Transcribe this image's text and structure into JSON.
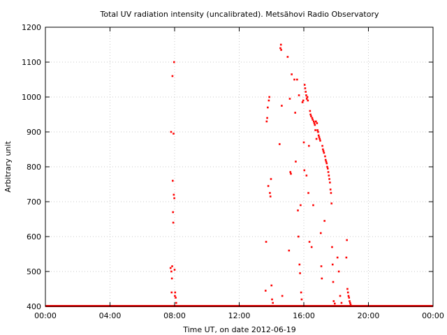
{
  "chart_data": {
    "type": "scatter",
    "title": "Total UV radiation intensity (uncalibrated). Metsähovi Radio Observatory",
    "xlabel": "Time UT, on date 2012-06-19",
    "ylabel": "Arbitrary unit",
    "xlim": [
      "00:00",
      "24:00"
    ],
    "ylim": [
      400,
      1200
    ],
    "x_ticks": [
      "00:00",
      "04:00",
      "08:00",
      "12:00",
      "16:00",
      "20:00",
      "00:00"
    ],
    "y_ticks": [
      400,
      500,
      600,
      700,
      800,
      900,
      1000,
      1100,
      1200
    ],
    "grid": true,
    "legend": "none",
    "marker_color": "#ff0000",
    "baseline": {
      "value": 401,
      "from": "00:00",
      "to": "24:00",
      "note_visible": false
    },
    "points": [
      {
        "x": "07:45",
        "y": 510
      },
      {
        "x": "07:47",
        "y": 900
      },
      {
        "x": "07:48",
        "y": 500
      },
      {
        "x": "07:49",
        "y": 440
      },
      {
        "x": "07:50",
        "y": 480
      },
      {
        "x": "07:51",
        "y": 515
      },
      {
        "x": "07:52",
        "y": 1060
      },
      {
        "x": "07:53",
        "y": 760
      },
      {
        "x": "07:54",
        "y": 670
      },
      {
        "x": "07:55",
        "y": 640
      },
      {
        "x": "07:56",
        "y": 895
      },
      {
        "x": "07:57",
        "y": 720
      },
      {
        "x": "07:58",
        "y": 1100
      },
      {
        "x": "07:59",
        "y": 710
      },
      {
        "x": "08:00",
        "y": 505
      },
      {
        "x": "08:01",
        "y": 430
      },
      {
        "x": "08:02",
        "y": 440
      },
      {
        "x": "08:04",
        "y": 425
      },
      {
        "x": "08:06",
        "y": 410
      },
      {
        "x": "13:38",
        "y": 445
      },
      {
        "x": "13:40",
        "y": 585
      },
      {
        "x": "13:42",
        "y": 930
      },
      {
        "x": "13:44",
        "y": 940
      },
      {
        "x": "13:46",
        "y": 970
      },
      {
        "x": "13:48",
        "y": 745
      },
      {
        "x": "13:50",
        "y": 990
      },
      {
        "x": "13:52",
        "y": 1000
      },
      {
        "x": "13:54",
        "y": 725
      },
      {
        "x": "13:56",
        "y": 715
      },
      {
        "x": "13:58",
        "y": 765
      },
      {
        "x": "14:00",
        "y": 460
      },
      {
        "x": "14:02",
        "y": 420
      },
      {
        "x": "14:05",
        "y": 410
      },
      {
        "x": "14:30",
        "y": 865
      },
      {
        "x": "14:33",
        "y": 1140
      },
      {
        "x": "14:35",
        "y": 1150
      },
      {
        "x": "14:36",
        "y": 1135
      },
      {
        "x": "14:38",
        "y": 975
      },
      {
        "x": "14:40",
        "y": 430
      },
      {
        "x": "15:00",
        "y": 1115
      },
      {
        "x": "15:05",
        "y": 560
      },
      {
        "x": "15:08",
        "y": 995
      },
      {
        "x": "15:10",
        "y": 785
      },
      {
        "x": "15:12",
        "y": 780
      },
      {
        "x": "15:15",
        "y": 1065
      },
      {
        "x": "15:25",
        "y": 1050
      },
      {
        "x": "15:28",
        "y": 955
      },
      {
        "x": "15:30",
        "y": 815
      },
      {
        "x": "15:35",
        "y": 1050
      },
      {
        "x": "15:38",
        "y": 675
      },
      {
        "x": "15:40",
        "y": 600
      },
      {
        "x": "15:42",
        "y": 1005
      },
      {
        "x": "15:44",
        "y": 520
      },
      {
        "x": "15:46",
        "y": 495
      },
      {
        "x": "15:48",
        "y": 690
      },
      {
        "x": "15:50",
        "y": 440
      },
      {
        "x": "15:52",
        "y": 420
      },
      {
        "x": "15:55",
        "y": 985
      },
      {
        "x": "15:58",
        "y": 990
      },
      {
        "x": "16:00",
        "y": 870
      },
      {
        "x": "16:02",
        "y": 790
      },
      {
        "x": "16:03",
        "y": 1035
      },
      {
        "x": "16:05",
        "y": 1025
      },
      {
        "x": "16:07",
        "y": 1015
      },
      {
        "x": "16:09",
        "y": 1005
      },
      {
        "x": "16:10",
        "y": 775
      },
      {
        "x": "16:11",
        "y": 995
      },
      {
        "x": "16:13",
        "y": 1000
      },
      {
        "x": "16:15",
        "y": 990
      },
      {
        "x": "16:17",
        "y": 725
      },
      {
        "x": "16:19",
        "y": 860
      },
      {
        "x": "16:21",
        "y": 585
      },
      {
        "x": "16:23",
        "y": 960
      },
      {
        "x": "16:25",
        "y": 950
      },
      {
        "x": "16:27",
        "y": 945
      },
      {
        "x": "16:29",
        "y": 570
      },
      {
        "x": "16:31",
        "y": 940
      },
      {
        "x": "16:33",
        "y": 935
      },
      {
        "x": "16:35",
        "y": 690
      },
      {
        "x": "16:37",
        "y": 930
      },
      {
        "x": "16:39",
        "y": 925
      },
      {
        "x": "16:41",
        "y": 920
      },
      {
        "x": "16:43",
        "y": 905
      },
      {
        "x": "16:45",
        "y": 930
      },
      {
        "x": "16:47",
        "y": 880
      },
      {
        "x": "16:49",
        "y": 925
      },
      {
        "x": "16:51",
        "y": 905
      },
      {
        "x": "16:53",
        "y": 900
      },
      {
        "x": "16:55",
        "y": 890
      },
      {
        "x": "16:57",
        "y": 885
      },
      {
        "x": "16:59",
        "y": 880
      },
      {
        "x": "17:01",
        "y": 875
      },
      {
        "x": "17:03",
        "y": 610
      },
      {
        "x": "17:05",
        "y": 515
      },
      {
        "x": "17:07",
        "y": 480
      },
      {
        "x": "17:09",
        "y": 860
      },
      {
        "x": "17:11",
        "y": 850
      },
      {
        "x": "17:13",
        "y": 845
      },
      {
        "x": "17:15",
        "y": 840
      },
      {
        "x": "17:17",
        "y": 645
      },
      {
        "x": "17:19",
        "y": 830
      },
      {
        "x": "17:21",
        "y": 820
      },
      {
        "x": "17:23",
        "y": 815
      },
      {
        "x": "17:25",
        "y": 810
      },
      {
        "x": "17:27",
        "y": 800
      },
      {
        "x": "17:29",
        "y": 795
      },
      {
        "x": "17:31",
        "y": 785
      },
      {
        "x": "17:33",
        "y": 775
      },
      {
        "x": "17:35",
        "y": 765
      },
      {
        "x": "17:37",
        "y": 755
      },
      {
        "x": "17:39",
        "y": 735
      },
      {
        "x": "17:41",
        "y": 725
      },
      {
        "x": "17:43",
        "y": 695
      },
      {
        "x": "17:45",
        "y": 570
      },
      {
        "x": "17:47",
        "y": 520
      },
      {
        "x": "17:49",
        "y": 470
      },
      {
        "x": "17:51",
        "y": 415
      },
      {
        "x": "17:55",
        "y": 408
      },
      {
        "x": "18:05",
        "y": 540
      },
      {
        "x": "18:10",
        "y": 500
      },
      {
        "x": "18:15",
        "y": 430
      },
      {
        "x": "18:20",
        "y": 410
      },
      {
        "x": "18:38",
        "y": 540
      },
      {
        "x": "18:40",
        "y": 590
      },
      {
        "x": "18:42",
        "y": 450
      },
      {
        "x": "18:44",
        "y": 440
      },
      {
        "x": "18:46",
        "y": 430
      },
      {
        "x": "18:48",
        "y": 425
      },
      {
        "x": "18:50",
        "y": 415
      },
      {
        "x": "18:52",
        "y": 410
      },
      {
        "x": "18:54",
        "y": 405
      }
    ]
  }
}
